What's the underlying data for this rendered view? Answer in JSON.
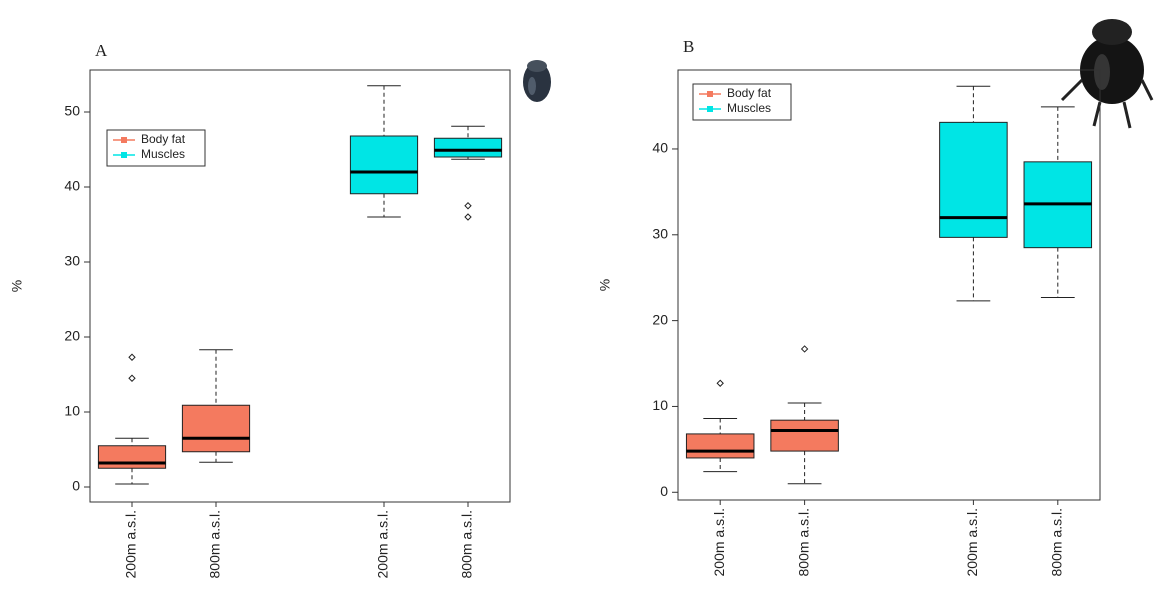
{
  "chart_data": [
    {
      "type": "box",
      "label": "A",
      "ylabel": "%",
      "categories": [
        "200m a.s.l.",
        "800m a.s.l.",
        null,
        "200m a.s.l.",
        "800m a.s.l."
      ],
      "series": [
        {
          "name": "Body fat",
          "color": "#f47a5f",
          "values": [
            {
              "min": 0.4,
              "q1": 2.5,
              "median": 3.2,
              "q3": 5.5,
              "max": 6.5,
              "outliers": [
                14.5,
                17.3
              ]
            },
            {
              "min": 3.3,
              "q1": 4.7,
              "median": 6.5,
              "q3": 10.9,
              "max": 18.3,
              "outliers": []
            },
            null,
            null,
            null
          ]
        },
        {
          "name": "Muscles",
          "color": "#00e5e5",
          "values": [
            null,
            null,
            null,
            {
              "min": 36,
              "q1": 39.1,
              "median": 42,
              "q3": 46.8,
              "max": 53.5,
              "outliers": []
            },
            {
              "min": 43.7,
              "q1": 44,
              "median": 44.9,
              "q3": 46.5,
              "max": 48.1,
              "outliers": [
                37.5,
                36
              ]
            }
          ]
        }
      ],
      "ylim": [
        -2,
        55.6
      ],
      "yticks": [
        0,
        10,
        20,
        30,
        40,
        50
      ],
      "legend": "upper left"
    },
    {
      "type": "box",
      "label": "B",
      "ylabel": "%",
      "categories": [
        "200m a.s.l.",
        "800m a.s.l.",
        null,
        "200m a.s.l.",
        "800m a.s.l."
      ],
      "series": [
        {
          "name": "Body fat",
          "color": "#f47a5f",
          "values": [
            {
              "min": 2.4,
              "q1": 4.0,
              "median": 4.8,
              "q3": 6.8,
              "max": 8.6,
              "outliers": [
                12.7
              ]
            },
            {
              "min": 1.0,
              "q1": 4.8,
              "median": 7.2,
              "q3": 8.4,
              "max": 10.4,
              "outliers": [
                16.7
              ]
            },
            null,
            null,
            null
          ]
        },
        {
          "name": "Muscles",
          "color": "#00e5e5",
          "values": [
            null,
            null,
            null,
            {
              "min": 22.3,
              "q1": 29.7,
              "median": 32.0,
              "q3": 43.1,
              "max": 47.3,
              "outliers": []
            },
            {
              "min": 22.7,
              "q1": 28.5,
              "median": 33.6,
              "q3": 38.5,
              "max": 44.9,
              "outliers": []
            }
          ]
        }
      ],
      "ylim": [
        -0.9,
        49.2
      ],
      "yticks": [
        0,
        10,
        20,
        30,
        40
      ],
      "legend": "upper left"
    }
  ]
}
